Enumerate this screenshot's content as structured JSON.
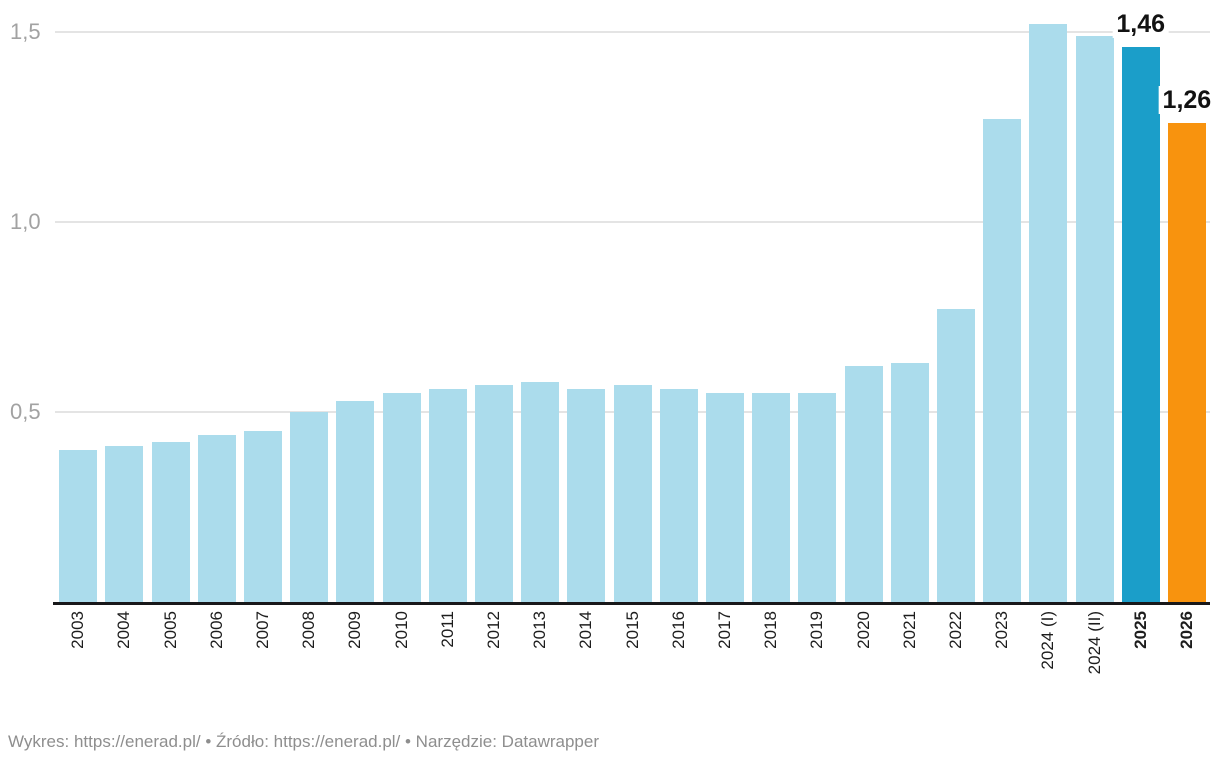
{
  "chart_data": {
    "type": "bar",
    "categories": [
      "2003",
      "2004",
      "2005",
      "2006",
      "2007",
      "2008",
      "2009",
      "2010",
      "2011",
      "2012",
      "2013",
      "2014",
      "2015",
      "2016",
      "2017",
      "2018",
      "2019",
      "2020",
      "2021",
      "2022",
      "2023",
      "2024 (I)",
      "2024 (II)",
      "2025",
      "2026"
    ],
    "values": [
      0.4,
      0.41,
      0.42,
      0.44,
      0.45,
      0.5,
      0.53,
      0.55,
      0.56,
      0.57,
      0.58,
      0.56,
      0.57,
      0.56,
      0.55,
      0.55,
      0.55,
      0.62,
      0.63,
      0.77,
      1.27,
      1.52,
      1.49,
      1.46,
      1.26
    ],
    "title": "",
    "xlabel": "",
    "ylabel": "",
    "ylim": [
      0,
      1.58
    ],
    "grid": true,
    "y_ticks": [
      {
        "value": 0.5,
        "label": "0,5"
      },
      {
        "value": 1.0,
        "label": "1,0"
      },
      {
        "value": 1.5,
        "label": "1,5"
      }
    ],
    "colors": {
      "default": "#abdcec",
      "2025": "#1b9ec9",
      "2026": "#f8930e"
    },
    "bold_categories": [
      "2025",
      "2026"
    ],
    "annotations": [
      {
        "category": "2025",
        "text": "1,46"
      },
      {
        "category": "2026",
        "text": "1,26"
      }
    ]
  },
  "footer": {
    "chart_label": "Wykres: ",
    "chart_link": "https://enerad.pl/",
    "source_label": " • Źródło: ",
    "source_link": "https://enerad.pl/",
    "tool_label": " • Narzędzie: ",
    "tool_link": "Datawrapper"
  }
}
